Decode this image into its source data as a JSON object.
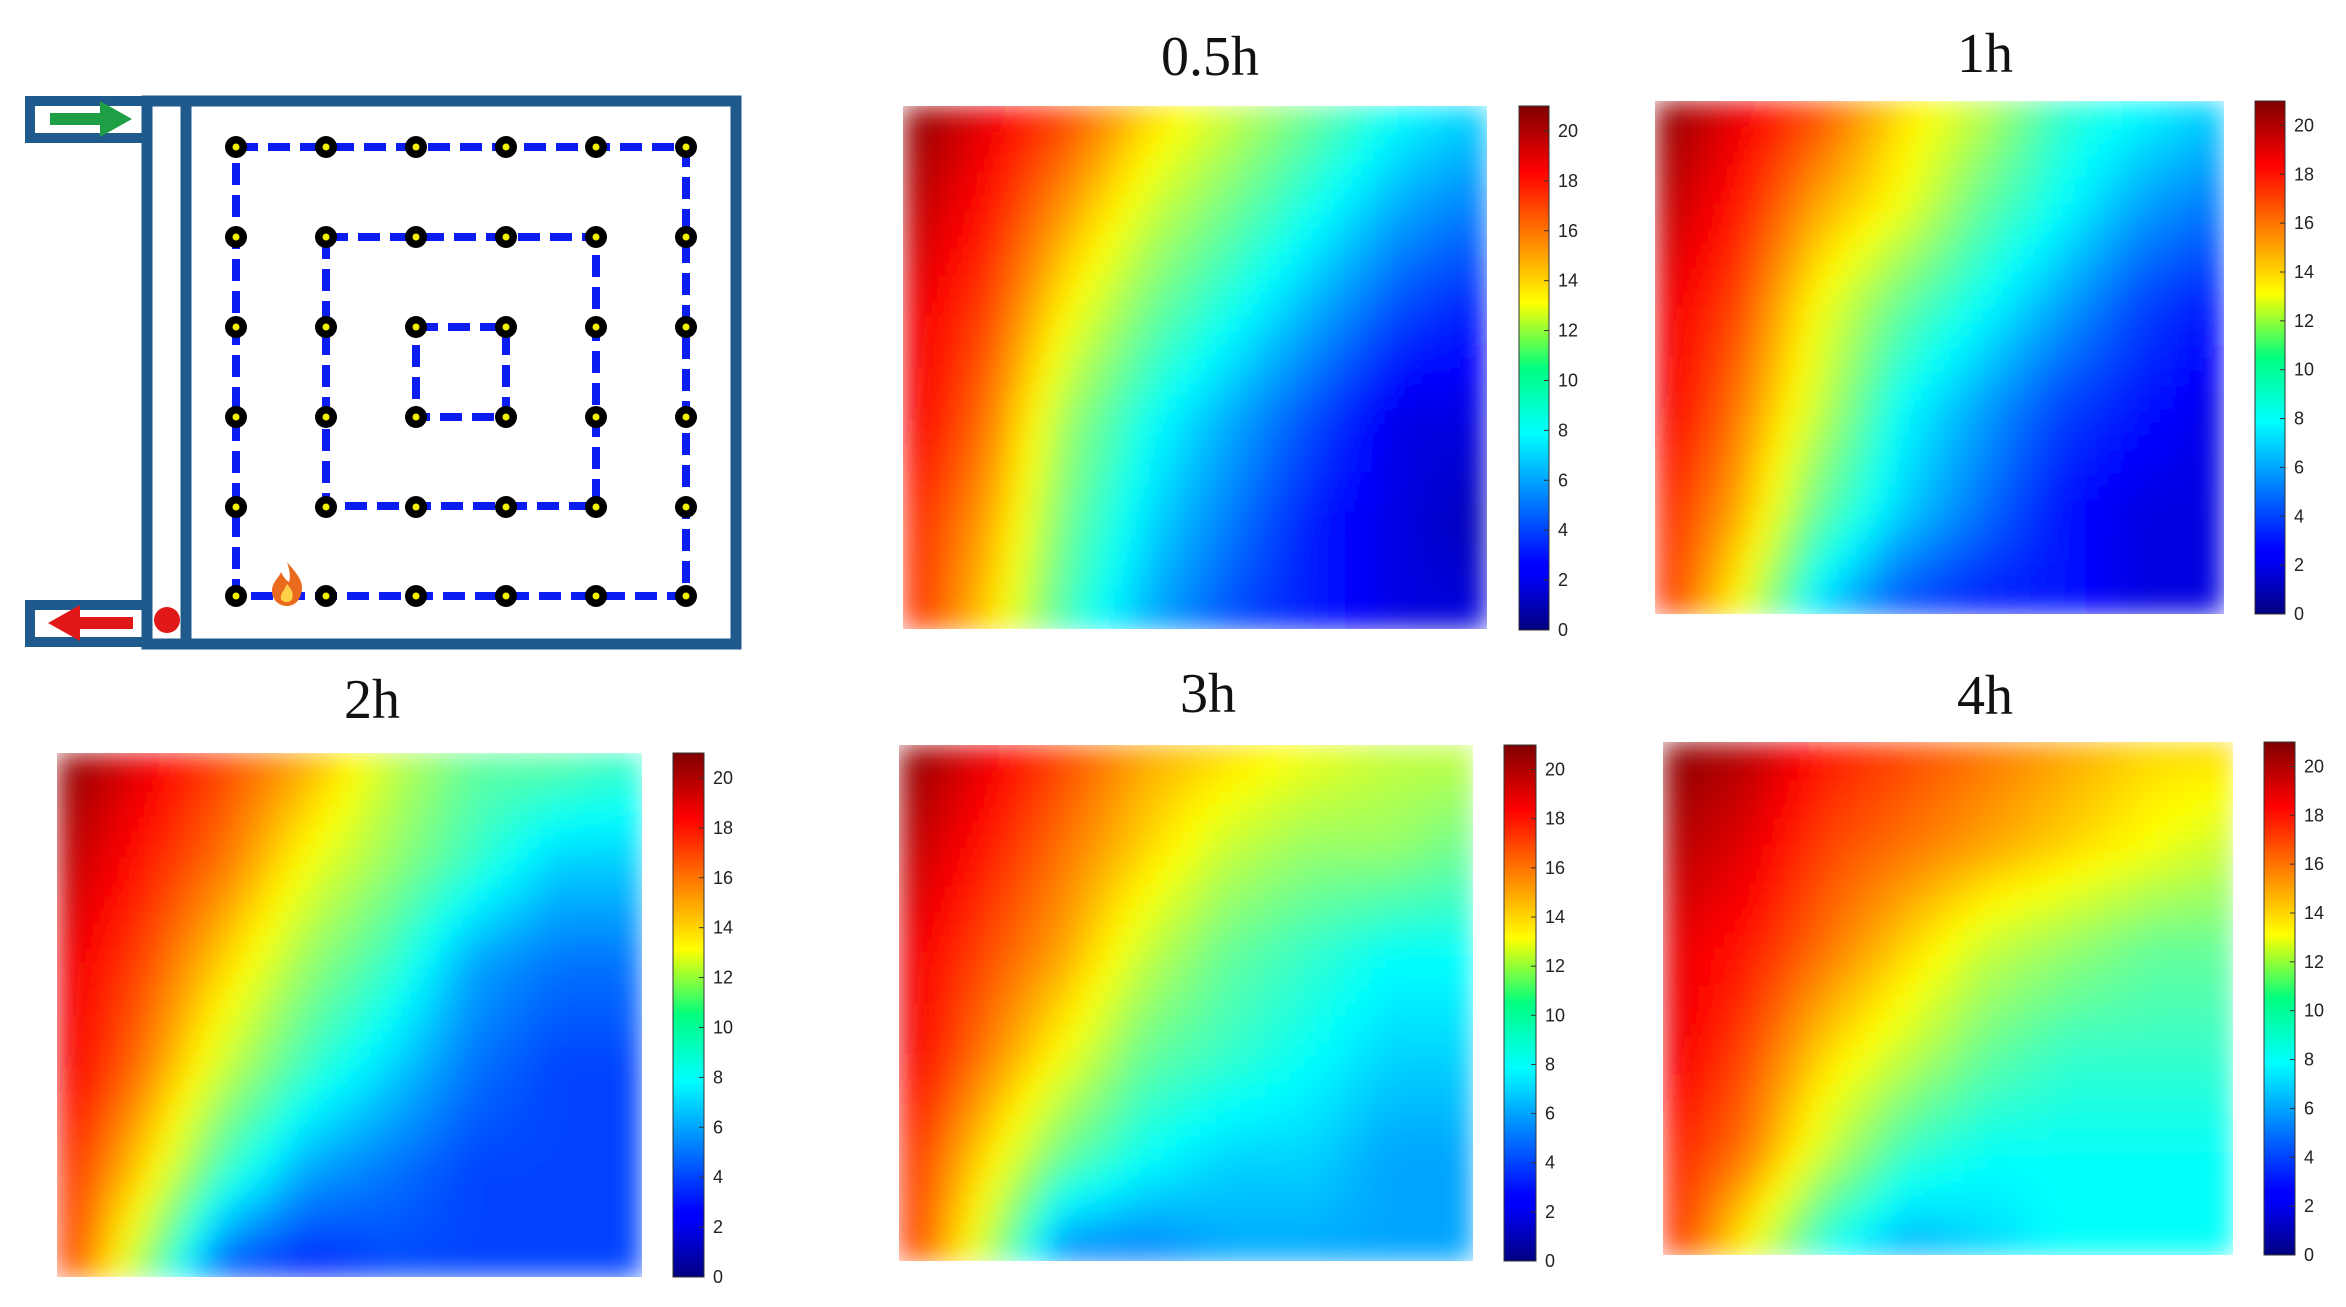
{
  "diagram": {
    "label": "pipe layout schematic",
    "pipe_color": "#1f5a8c",
    "loop_color": "#0b1cf0",
    "node_color": "#000000",
    "node_core_color": "#f2f200",
    "inlet_arrow_color": "#1e9e45",
    "outlet_arrow_color": "#e01818",
    "icons": [
      "fire-icon",
      "inlet-arrow-icon",
      "outlet-arrow-icon"
    ]
  },
  "chart_data": [
    {
      "type": "heatmap",
      "title": "0.5h",
      "colormap": "jet",
      "clim": [
        0,
        21
      ],
      "colorbar_ticks": [
        "0",
        "2",
        "4",
        "6",
        "8",
        "10",
        "12",
        "14",
        "16",
        "18",
        "20"
      ],
      "hot_corner": "top-left",
      "values": [
        [
          21,
          19,
          17,
          14,
          12,
          10,
          8,
          7
        ],
        [
          20,
          18,
          15,
          12,
          10,
          8,
          6,
          5
        ],
        [
          19,
          17,
          13,
          10,
          8,
          6,
          4,
          3
        ],
        [
          19,
          16,
          11,
          8,
          6,
          4,
          2,
          2
        ],
        [
          18,
          15,
          10,
          7,
          5,
          3,
          2,
          1
        ],
        [
          18,
          14,
          9,
          6,
          4,
          3,
          2,
          2
        ]
      ]
    },
    {
      "type": "heatmap",
      "title": "1h",
      "colormap": "jet",
      "clim": [
        0,
        21
      ],
      "colorbar_ticks": [
        "0",
        "2",
        "4",
        "6",
        "8",
        "10",
        "12",
        "14",
        "16",
        "18",
        "20"
      ],
      "hot_corner": "top-left",
      "values": [
        [
          21,
          19,
          17,
          14,
          12,
          9,
          8,
          7
        ],
        [
          20,
          18,
          15,
          13,
          10,
          8,
          6,
          5
        ],
        [
          19,
          17,
          13,
          10,
          8,
          6,
          4,
          3
        ],
        [
          19,
          16,
          12,
          8,
          6,
          4,
          3,
          2
        ],
        [
          18,
          15,
          10,
          7,
          5,
          3,
          2,
          2
        ],
        [
          18,
          13,
          7,
          4,
          3,
          3,
          2,
          2
        ]
      ]
    },
    {
      "type": "heatmap",
      "title": "2h",
      "colormap": "jet",
      "clim": [
        0,
        21
      ],
      "colorbar_ticks": [
        "0",
        "2",
        "4",
        "6",
        "8",
        "10",
        "12",
        "14",
        "16",
        "18",
        "20"
      ],
      "hot_corner": "top-left",
      "values": [
        [
          21,
          19,
          17,
          15,
          12,
          10,
          10,
          9
        ],
        [
          20,
          18,
          16,
          13,
          11,
          9,
          7,
          7
        ],
        [
          19,
          17,
          14,
          11,
          9,
          6,
          5,
          5
        ],
        [
          19,
          16,
          12,
          9,
          7,
          5,
          4,
          4
        ],
        [
          18,
          14,
          9,
          6,
          5,
          4,
          4,
          4
        ],
        [
          18,
          11,
          4,
          3,
          4,
          4,
          4,
          4
        ]
      ]
    },
    {
      "type": "heatmap",
      "title": "3h",
      "colormap": "jet",
      "clim": [
        0,
        21
      ],
      "colorbar_ticks": [
        "0",
        "2",
        "4",
        "6",
        "8",
        "10",
        "12",
        "14",
        "16",
        "18",
        "20"
      ],
      "hot_corner": "top-left",
      "values": [
        [
          21,
          19,
          17,
          15,
          14,
          13,
          12,
          12
        ],
        [
          20,
          18,
          16,
          14,
          12,
          11,
          11,
          10
        ],
        [
          19,
          17,
          15,
          12,
          10,
          9,
          8,
          8
        ],
        [
          19,
          16,
          13,
          10,
          9,
          8,
          7,
          7
        ],
        [
          18,
          14,
          10,
          8,
          7,
          7,
          6,
          6
        ],
        [
          18,
          12,
          5,
          5,
          6,
          6,
          6,
          6
        ]
      ]
    },
    {
      "type": "heatmap",
      "title": "4h",
      "colormap": "jet",
      "clim": [
        0,
        21
      ],
      "colorbar_ticks": [
        "0",
        "2",
        "4",
        "6",
        "8",
        "10",
        "12",
        "14",
        "16",
        "18",
        "20"
      ],
      "hot_corner": "top-left",
      "values": [
        [
          21,
          20,
          18,
          17,
          16,
          15,
          14,
          14
        ],
        [
          20,
          19,
          17,
          16,
          15,
          14,
          13,
          12
        ],
        [
          19,
          18,
          16,
          14,
          12,
          11,
          10,
          10
        ],
        [
          19,
          17,
          14,
          12,
          10,
          9,
          9,
          9
        ],
        [
          18,
          16,
          12,
          9,
          8,
          8,
          8,
          8
        ],
        [
          18,
          13,
          8,
          6,
          7,
          8,
          8,
          8
        ]
      ]
    }
  ]
}
